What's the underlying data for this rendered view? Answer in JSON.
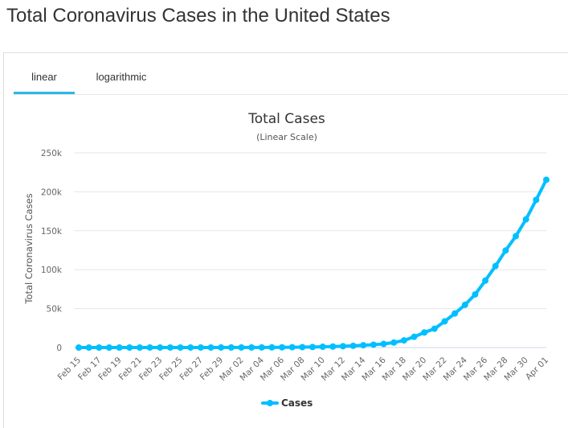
{
  "page": {
    "title": "Total Coronavirus Cases in the United States"
  },
  "tabs": [
    {
      "label": "linear",
      "active": true
    },
    {
      "label": "logarithmic",
      "active": false
    }
  ],
  "colors": {
    "series": "#00bfff",
    "tab_active": "#2bb8e6",
    "grid": "#e6e6e6"
  },
  "chart_data": {
    "type": "line",
    "title": "Total Cases",
    "subtitle": "(Linear Scale)",
    "xlabel": "",
    "ylabel": "Total Coronavirus Cases",
    "ylim": [
      0,
      250000
    ],
    "yticks": [
      {
        "value": 0,
        "label": "0"
      },
      {
        "value": 50000,
        "label": "50k"
      },
      {
        "value": 100000,
        "label": "100k"
      },
      {
        "value": 150000,
        "label": "150k"
      },
      {
        "value": 200000,
        "label": "200k"
      },
      {
        "value": 250000,
        "label": "250k"
      }
    ],
    "xticks": [
      "Feb 15",
      "Feb 17",
      "Feb 19",
      "Feb 21",
      "Feb 23",
      "Feb 25",
      "Feb 27",
      "Feb 29",
      "Mar 02",
      "Mar 04",
      "Mar 06",
      "Mar 08",
      "Mar 10",
      "Mar 12",
      "Mar 14",
      "Mar 16",
      "Mar 18",
      "Mar 20",
      "Mar 22",
      "Mar 24",
      "Mar 26",
      "Mar 28",
      "Mar 30",
      "Apr 01"
    ],
    "categories": [
      "Feb 15",
      "Feb 16",
      "Feb 17",
      "Feb 18",
      "Feb 19",
      "Feb 20",
      "Feb 21",
      "Feb 22",
      "Feb 23",
      "Feb 24",
      "Feb 25",
      "Feb 26",
      "Feb 27",
      "Feb 28",
      "Feb 29",
      "Mar 01",
      "Mar 02",
      "Mar 03",
      "Mar 04",
      "Mar 05",
      "Mar 06",
      "Mar 07",
      "Mar 08",
      "Mar 09",
      "Mar 10",
      "Mar 11",
      "Mar 12",
      "Mar 13",
      "Mar 14",
      "Mar 15",
      "Mar 16",
      "Mar 17",
      "Mar 18",
      "Mar 19",
      "Mar 20",
      "Mar 21",
      "Mar 22",
      "Mar 23",
      "Mar 24",
      "Mar 25",
      "Mar 26",
      "Mar 27",
      "Mar 28",
      "Mar 29",
      "Mar 30",
      "Mar 31",
      "Apr 01"
    ],
    "series": [
      {
        "name": "Cases",
        "values": [
          15,
          15,
          15,
          15,
          15,
          15,
          15,
          35,
          35,
          53,
          53,
          59,
          60,
          62,
          68,
          75,
          100,
          124,
          158,
          221,
          319,
          435,
          541,
          704,
          994,
          1301,
          1697,
          2247,
          2943,
          3680,
          4663,
          6411,
          9197,
          13779,
          19367,
          24192,
          33592,
          43781,
          54856,
          68211,
          85996,
          104686,
          124665,
          143025,
          164620,
          189618,
          215417
        ]
      }
    ],
    "grid": true,
    "legend": "bottom-center"
  }
}
